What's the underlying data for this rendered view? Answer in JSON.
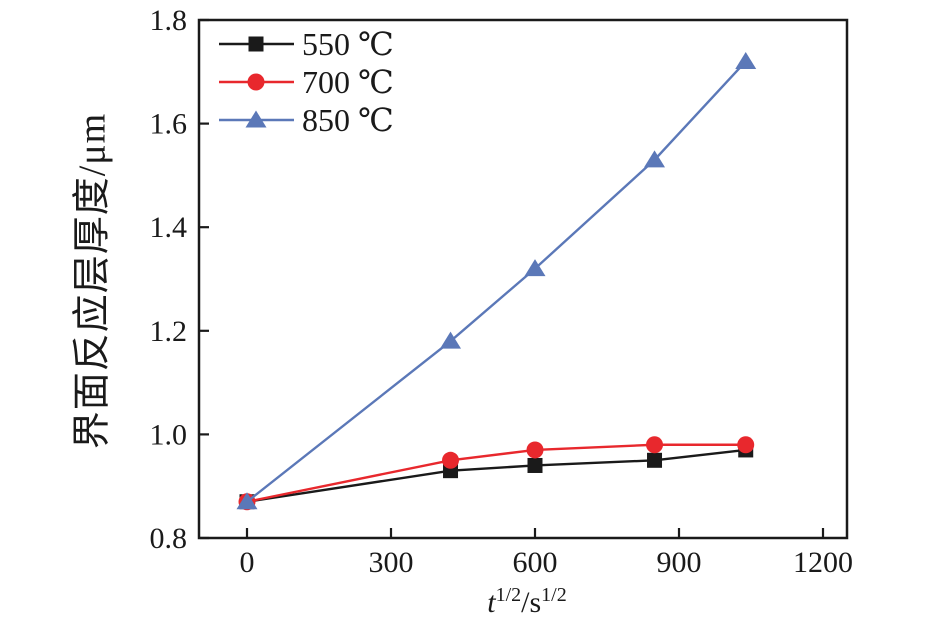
{
  "chart_data": {
    "type": "line",
    "xlabel": "t^(1/2)/s^(1/2)",
    "xlabel_parts": [
      "t",
      "1/2",
      "/s",
      "1/2"
    ],
    "ylabel": "界面反应层厚度/μm",
    "xlim": [
      -100,
      1250
    ],
    "ylim": [
      0.8,
      1.8
    ],
    "xticks": {
      "values": [
        0,
        300,
        600,
        900,
        1200
      ],
      "labels": [
        "0",
        "300",
        "600",
        "900",
        "1200"
      ]
    },
    "yticks": {
      "values": [
        0.8,
        1.0,
        1.2,
        1.4,
        1.6,
        1.8
      ],
      "labels": [
        "0.8",
        "1.0",
        "1.2",
        "1.4",
        "1.6",
        "1.8"
      ]
    },
    "grid": false,
    "legend_position": "top-left-inside",
    "x": [
      0,
      424,
      600,
      849,
      1039
    ],
    "series": [
      {
        "name": "550 ℃",
        "color": "#1a1a1a",
        "marker": "square",
        "values": [
          0.87,
          0.93,
          0.94,
          0.95,
          0.97
        ]
      },
      {
        "name": "700 ℃",
        "color": "#e8282d",
        "marker": "circle",
        "values": [
          0.87,
          0.95,
          0.97,
          0.98,
          0.98
        ]
      },
      {
        "name": "850 ℃",
        "color": "#5b78b8",
        "marker": "triangle",
        "values": [
          0.87,
          1.18,
          1.32,
          1.53,
          1.72
        ]
      }
    ],
    "axis_color": "#1a1a1a",
    "background": "#ffffff"
  }
}
